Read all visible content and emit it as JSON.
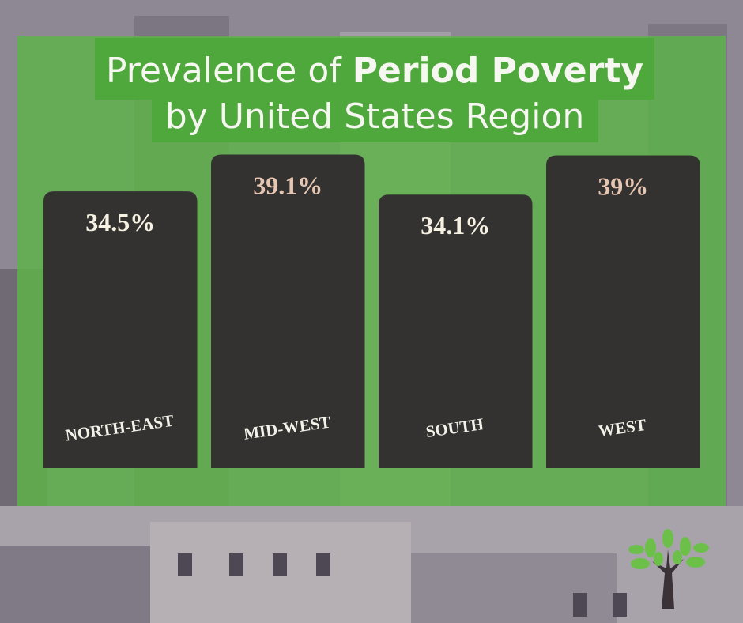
{
  "chart_data": {
    "type": "bar",
    "title": {
      "lead": "Prevalence of",
      "emphasis": "Period Poverty",
      "line2": "by United States Region"
    },
    "categories": [
      "NORTH-EAST",
      "MID-WEST",
      "SOUTH",
      "WEST"
    ],
    "values": [
      34.5,
      39.1,
      34.1,
      39
    ],
    "value_labels": [
      "34.5%",
      "39.1%",
      "34.1%",
      "39%"
    ],
    "color": "#333231",
    "value_label_colors": [
      "#f6f1e2",
      "#e6c6b2",
      "#f6f1e2",
      "#e6c6b2"
    ]
  }
}
